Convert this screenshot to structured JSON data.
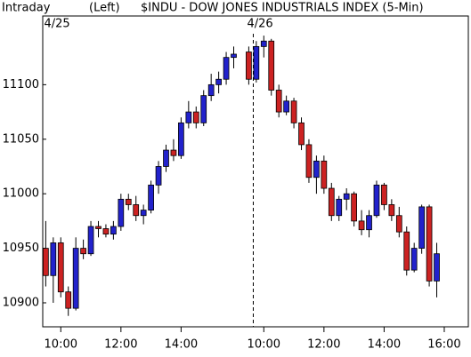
{
  "chart_data": {
    "type": "candlestick",
    "title": "$INDU - DOW JONES INDUSTRIALS INDEX (5-Min)",
    "period": "Intraday",
    "axis_side": "(Left)",
    "dates": [
      {
        "value": 1.5,
        "label": "4/25"
      },
      {
        "value": 28.5,
        "label": "4/26"
      }
    ],
    "day_divider": 27.6,
    "up_color": "#2222cc",
    "down_color": "#cc2222",
    "x": [
      0,
      1,
      2,
      3,
      4,
      5,
      6,
      7,
      8,
      9,
      10,
      11,
      12,
      13,
      14,
      15,
      16,
      17,
      18,
      19,
      20,
      21,
      22,
      23,
      24,
      25,
      27,
      28,
      29,
      30,
      31,
      32,
      33,
      34,
      35,
      36,
      37,
      38,
      39,
      40,
      41,
      42,
      43,
      44,
      45,
      46,
      47,
      48,
      49,
      50,
      51,
      52
    ],
    "open": [
      10950,
      10925,
      10955,
      10910,
      10895,
      10950,
      10945,
      10970,
      10968,
      10963,
      10970,
      10995,
      10990,
      10980,
      10985,
      11008,
      11025,
      11040,
      11035,
      11065,
      11075,
      11065,
      11090,
      11100,
      11105,
      11125,
      11130,
      11105,
      11135,
      11140,
      11095,
      11075,
      11085,
      11065,
      11045,
      11015,
      11030,
      11005,
      10980,
      10995,
      11000,
      10975,
      10967,
      10980,
      11008,
      10990,
      10980,
      10965,
      10930,
      10950,
      10988,
      10920
    ],
    "high": [
      10975,
      10960,
      10960,
      10915,
      10960,
      10958,
      10975,
      10975,
      10972,
      10975,
      11000,
      11000,
      10998,
      10990,
      11012,
      11030,
      11045,
      11050,
      11070,
      11085,
      11080,
      11095,
      11110,
      11112,
      11130,
      11135,
      11135,
      11140,
      11145,
      11142,
      11100,
      11090,
      11088,
      11070,
      11050,
      11035,
      11035,
      11010,
      10998,
      11005,
      11002,
      10985,
      10985,
      11012,
      11010,
      10995,
      10988,
      10970,
      10955,
      10990,
      10990,
      10955
    ],
    "low": [
      10915,
      10900,
      10905,
      10888,
      10893,
      10940,
      10943,
      10960,
      10960,
      10958,
      10966,
      10985,
      10975,
      10972,
      10982,
      11000,
      11020,
      11030,
      11032,
      11060,
      11060,
      11062,
      11085,
      11092,
      11100,
      11115,
      11100,
      11102,
      11125,
      11090,
      11070,
      11072,
      11060,
      11040,
      11010,
      11000,
      11000,
      10975,
      10975,
      10985,
      10970,
      10962,
      10960,
      10978,
      10985,
      10975,
      10960,
      10925,
      10928,
      10945,
      10915,
      10905
    ],
    "close": [
      10925,
      10955,
      10910,
      10895,
      10950,
      10945,
      10970,
      10968,
      10963,
      10970,
      10995,
      10990,
      10980,
      10985,
      11008,
      11025,
      11040,
      11035,
      11065,
      11075,
      11065,
      11090,
      11100,
      11105,
      11125,
      11128,
      11105,
      11135,
      11140,
      11095,
      11075,
      11085,
      11065,
      11045,
      11015,
      11030,
      11005,
      10980,
      10995,
      11000,
      10975,
      10967,
      10980,
      11008,
      10990,
      10980,
      10965,
      10930,
      10950,
      10988,
      10920,
      10945
    ],
    "ylim": [
      10878,
      11163
    ],
    "yticks": [
      10900,
      10950,
      11000,
      11050,
      11100
    ],
    "xlim": [
      -0.4,
      56.2
    ],
    "xticks": [
      {
        "value": 2,
        "label": "10:00"
      },
      {
        "value": 10,
        "label": "12:00"
      },
      {
        "value": 18,
        "label": "14:00"
      },
      {
        "value": 29,
        "label": "10:00"
      },
      {
        "value": 37,
        "label": "12:00"
      },
      {
        "value": 45,
        "label": "14:00"
      },
      {
        "value": 53,
        "label": "16:00"
      }
    ]
  }
}
